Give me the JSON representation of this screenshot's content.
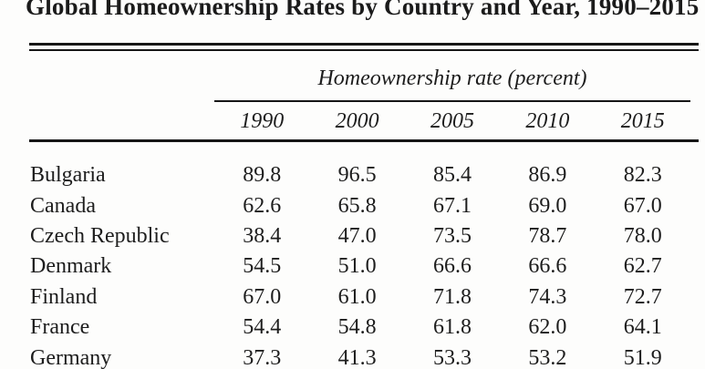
{
  "title": "Global Homeownership Rates by Country and Year, 1990–2015",
  "table": {
    "spanner": "Homeownership rate (percent)",
    "years": [
      "1990",
      "2000",
      "2005",
      "2010",
      "2015"
    ],
    "rows": [
      {
        "country": "Bulgaria",
        "values": [
          "89.8",
          "96.5",
          "85.4",
          "86.9",
          "82.3"
        ]
      },
      {
        "country": "Canada",
        "values": [
          "62.6",
          "65.8",
          "67.1",
          "69.0",
          "67.0"
        ]
      },
      {
        "country": "Czech Republic",
        "values": [
          "38.4",
          "47.0",
          "73.5",
          "78.7",
          "78.0"
        ]
      },
      {
        "country": "Denmark",
        "values": [
          "54.5",
          "51.0",
          "66.6",
          "66.6",
          "62.7"
        ]
      },
      {
        "country": "Finland",
        "values": [
          "67.0",
          "61.0",
          "71.8",
          "74.3",
          "72.7"
        ]
      },
      {
        "country": "France",
        "values": [
          "54.4",
          "54.8",
          "61.8",
          "62.0",
          "64.1"
        ]
      },
      {
        "country": "Germany",
        "values": [
          "37.3",
          "41.3",
          "53.3",
          "53.2",
          "51.9"
        ]
      }
    ]
  },
  "chart_data": {
    "type": "table",
    "title": "Global Homeownership Rates by Country and Year, 1990–2015",
    "column_group_label": "Homeownership rate (percent)",
    "columns": [
      "1990",
      "2000",
      "2005",
      "2010",
      "2015"
    ],
    "series": [
      {
        "name": "Bulgaria",
        "values": [
          89.8,
          96.5,
          85.4,
          86.9,
          82.3
        ]
      },
      {
        "name": "Canada",
        "values": [
          62.6,
          65.8,
          67.1,
          69.0,
          67.0
        ]
      },
      {
        "name": "Czech Republic",
        "values": [
          38.4,
          47.0,
          73.5,
          78.7,
          78.0
        ]
      },
      {
        "name": "Denmark",
        "values": [
          54.5,
          51.0,
          66.6,
          66.6,
          62.7
        ]
      },
      {
        "name": "Finland",
        "values": [
          67.0,
          61.0,
          71.8,
          74.3,
          72.7
        ]
      },
      {
        "name": "France",
        "values": [
          54.4,
          54.8,
          61.8,
          62.0,
          64.1
        ]
      },
      {
        "name": "Germany",
        "values": [
          37.3,
          41.3,
          53.3,
          53.2,
          51.9
        ]
      }
    ]
  },
  "colors": {
    "background": "#fdfdfc",
    "text": "#1d1d1d",
    "rule": "#161616"
  }
}
